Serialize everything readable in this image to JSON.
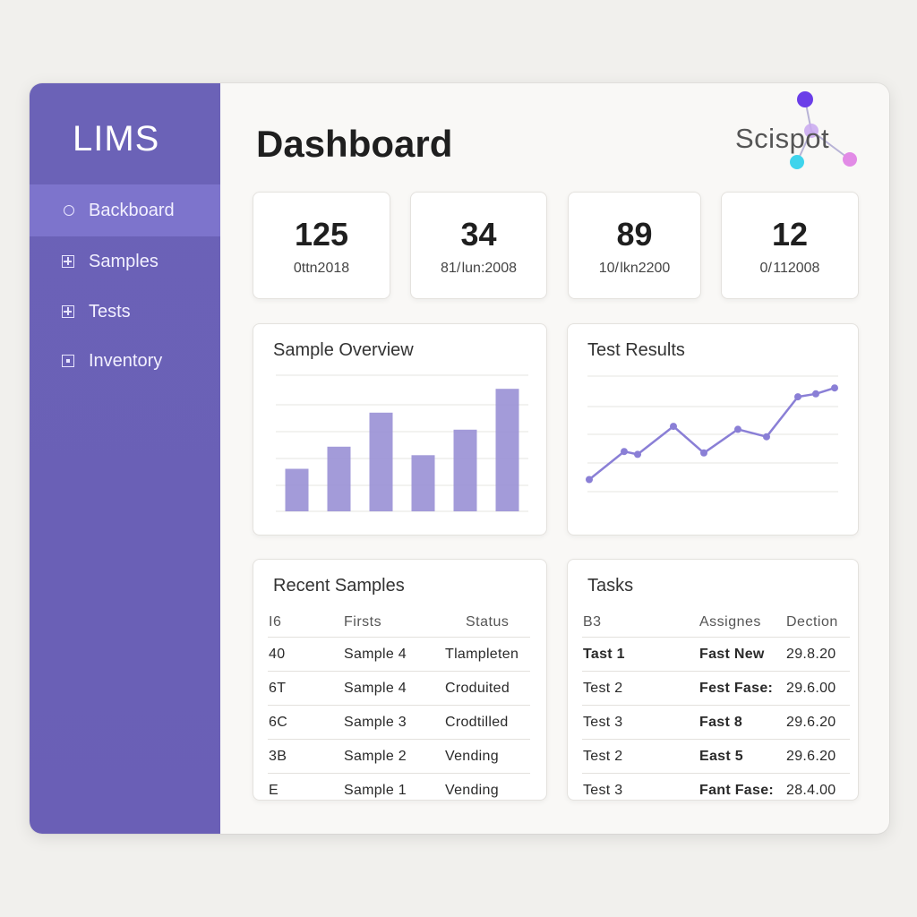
{
  "sidebar": {
    "brand": "LIMS",
    "items": [
      {
        "label": "Backboard",
        "icon": "circle-icon",
        "active": true
      },
      {
        "label": "Samples",
        "icon": "plus-box-icon",
        "active": false
      },
      {
        "label": "Tests",
        "icon": "plus-box-icon",
        "active": false
      },
      {
        "label": "Inventory",
        "icon": "dot-box-icon",
        "active": false
      }
    ]
  },
  "header": {
    "title": "Dashboard",
    "logo_text": "Scispot"
  },
  "stats": [
    {
      "value": "125",
      "sub": "0ttn2018"
    },
    {
      "value": "34",
      "sub": "81/ lun:2008"
    },
    {
      "value": "89",
      "sub": "10/ lkn2200"
    },
    {
      "value": "12",
      "sub": "0/ 112008"
    }
  ],
  "sample_overview": {
    "title": "Sample Overview",
    "chart_data": {
      "type": "bar",
      "values": [
        2.5,
        3.8,
        5.8,
        3.3,
        4.8,
        7.2
      ],
      "ylim": [
        0,
        8
      ],
      "grid": true,
      "color": "#9b93d6"
    }
  },
  "test_results": {
    "title": "Test Results",
    "chart_data": {
      "type": "line",
      "values": [
        1.0,
        2.9,
        2.7,
        4.6,
        2.8,
        4.4,
        3.9,
        6.6,
        6.8,
        7.2
      ],
      "ylim": [
        0,
        8
      ],
      "grid": true,
      "color": "#8a7fd6"
    }
  },
  "recent_samples": {
    "title": "Recent Samples",
    "columns": [
      "I6",
      "Firsts",
      "Status"
    ],
    "rows": [
      [
        "40",
        "Sample 4",
        "Tlampleten"
      ],
      [
        "6T",
        "Sample 4",
        "Croduited"
      ],
      [
        "6C",
        "Sample 3",
        "Crodtilled"
      ],
      [
        "3B",
        "Sample 2",
        "Vending"
      ],
      [
        "E",
        "Sample 1",
        "Vending"
      ]
    ]
  },
  "tasks": {
    "title": "Tasks",
    "columns": [
      "B3",
      "Assignes",
      "Dection"
    ],
    "rows": [
      [
        "Tast 1",
        "Fast New",
        "29.8.20"
      ],
      [
        "Test 2",
        "Fest Fase:",
        "29.6.00"
      ],
      [
        "Test 3",
        "Fast 8",
        "29.6.20"
      ],
      [
        "Test 2",
        "East 5",
        "29.6.20"
      ],
      [
        "Test 3",
        "Fant Fase:",
        "28.4.00"
      ]
    ]
  },
  "colors": {
    "sidebar": "#6a5fb6",
    "sidebar_active": "#7d74cc",
    "accent": "#8a7fd6"
  }
}
